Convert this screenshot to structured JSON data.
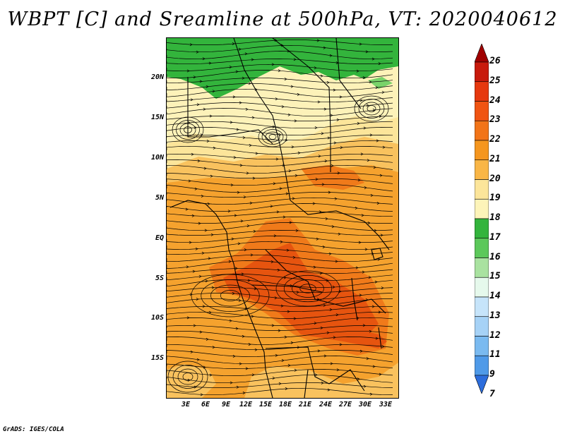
{
  "title": "WBPT [C] and Sreamline at 500hPa, VT: 2020040612",
  "footer": "GrADS: IGES/COLA",
  "lat_labels": [
    "20N",
    "15N",
    "10N",
    "5N",
    "EQ",
    "5S",
    "10S",
    "15S"
  ],
  "lon_labels": [
    "3E",
    "6E",
    "9E",
    "12E",
    "15E",
    "18E",
    "21E",
    "24E",
    "27E",
    "30E",
    "33E"
  ],
  "colorbar": {
    "levels": [
      "26",
      "25",
      "24",
      "23",
      "22",
      "21",
      "20",
      "19",
      "18",
      "17",
      "16",
      "15",
      "14",
      "13",
      "12",
      "11",
      "9",
      "7"
    ],
    "colors": [
      "#a00000",
      "#c81a0c",
      "#e6380e",
      "#f05412",
      "#f27418",
      "#f5961e",
      "#f9b646",
      "#fce59a",
      "#fdf4b9",
      "#33b43c",
      "#5cc85a",
      "#a9e2a0",
      "#e6f9ec",
      "#c6e4fa",
      "#a6d2f6",
      "#7abaf0",
      "#4f9ae8",
      "#2c6ddc"
    ]
  },
  "map_fields": {
    "colors": {
      "green": "#33b43c",
      "light_green": "#79d36a",
      "pale_yellow": "#fdf2b9",
      "yellow": "#fce59a",
      "light_orange": "#f9c25e",
      "orange": "#f5a22e",
      "dark_orange": "#f07a1a",
      "red_orange": "#e6540f"
    }
  }
}
